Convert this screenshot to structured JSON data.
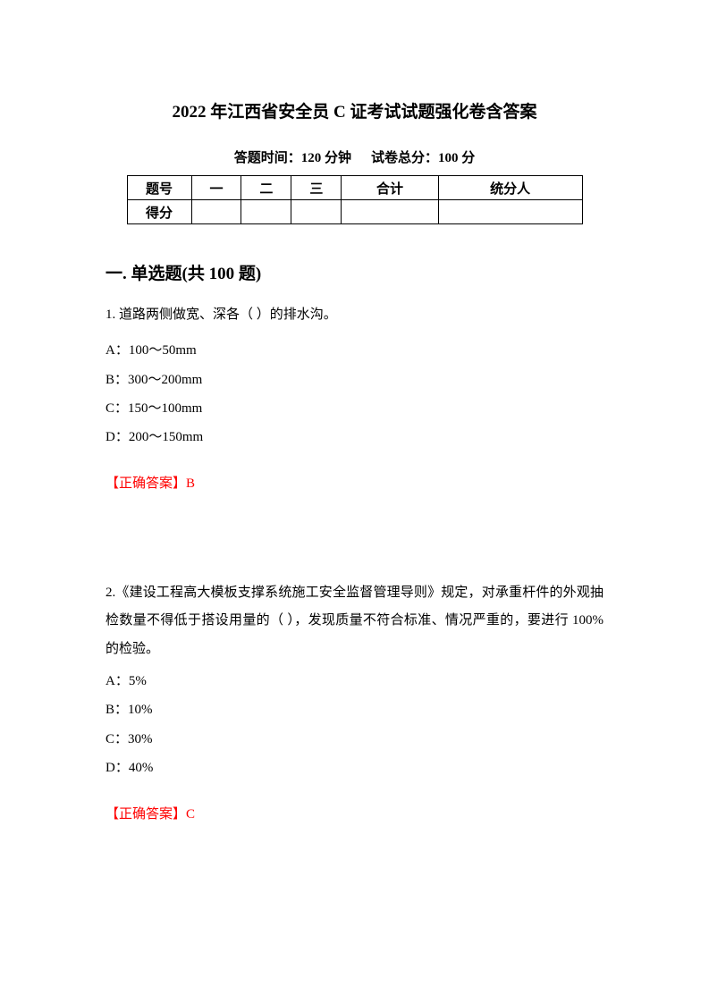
{
  "title": "2022 年江西省安全员 C 证考试试题强化卷含答案",
  "meta": {
    "time_label": "答题时间：120 分钟",
    "score_label": "试卷总分：100 分"
  },
  "score_table": {
    "row1": [
      "题号",
      "一",
      "二",
      "三",
      "合计",
      "统分人"
    ],
    "row2_label": "得分"
  },
  "section_header": "一. 单选题(共 100 题)",
  "q1": {
    "text": "1. 道路两侧做宽、深各（ ）的排水沟。",
    "opts": {
      "a": "A：100～50mm",
      "b": "B：300～200mm",
      "c": "C：150～100mm",
      "d": "D：200～150mm"
    },
    "answer": "【正确答案】B"
  },
  "q2": {
    "text": "2.《建设工程高大模板支撑系统施工安全监督管理导则》规定，对承重杆件的外观抽检数量不得低于搭设用量的（ ），发现质量不符合标准、情况严重的，要进行 100%的检验。",
    "opts": {
      "a": "A：5%",
      "b": "B：10%",
      "c": "C：30%",
      "d": "D：40%"
    },
    "answer": "【正确答案】C"
  }
}
